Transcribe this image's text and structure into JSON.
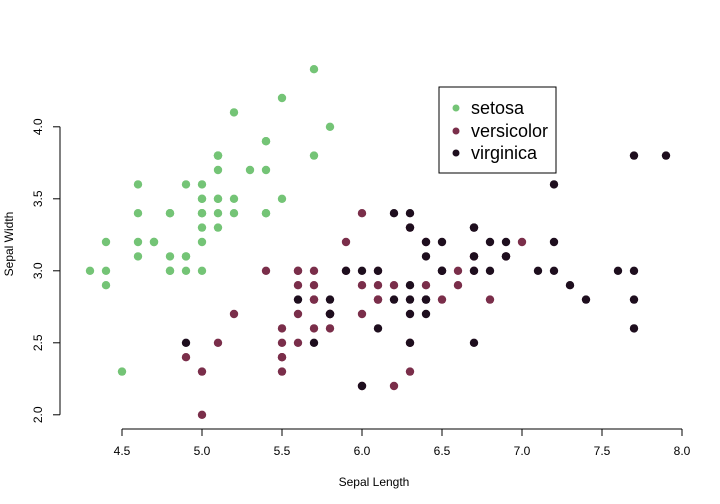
{
  "chart_data": {
    "type": "scatter",
    "title": "",
    "xlabel": "Sepal Length",
    "ylabel": "Sepal Width",
    "xlim": [
      4.2,
      8.0
    ],
    "ylim": [
      1.95,
      4.45
    ],
    "xticks": [
      "4.5",
      "5.0",
      "5.5",
      "6.0",
      "6.5",
      "7.0",
      "7.5",
      "8.0"
    ],
    "yticks": [
      "2.0",
      "2.5",
      "3.0",
      "3.5",
      "4.0"
    ],
    "legend_position": "top-right",
    "grid": false,
    "series": [
      {
        "name": "setosa",
        "color": "#74c476",
        "points": [
          [
            5.1,
            3.5
          ],
          [
            4.9,
            3.0
          ],
          [
            4.7,
            3.2
          ],
          [
            4.6,
            3.1
          ],
          [
            5.0,
            3.6
          ],
          [
            5.4,
            3.9
          ],
          [
            4.6,
            3.4
          ],
          [
            5.0,
            3.4
          ],
          [
            4.4,
            2.9
          ],
          [
            4.9,
            3.1
          ],
          [
            5.4,
            3.7
          ],
          [
            4.8,
            3.4
          ],
          [
            4.8,
            3.0
          ],
          [
            4.3,
            3.0
          ],
          [
            5.8,
            4.0
          ],
          [
            5.7,
            4.4
          ],
          [
            5.4,
            3.9
          ],
          [
            5.1,
            3.5
          ],
          [
            5.7,
            3.8
          ],
          [
            5.1,
            3.8
          ],
          [
            5.4,
            3.4
          ],
          [
            5.1,
            3.7
          ],
          [
            4.6,
            3.6
          ],
          [
            5.1,
            3.3
          ],
          [
            4.8,
            3.4
          ],
          [
            5.0,
            3.0
          ],
          [
            5.0,
            3.4
          ],
          [
            5.2,
            3.5
          ],
          [
            5.2,
            3.4
          ],
          [
            4.7,
            3.2
          ],
          [
            4.8,
            3.1
          ],
          [
            5.4,
            3.4
          ],
          [
            5.2,
            4.1
          ],
          [
            5.5,
            4.2
          ],
          [
            4.9,
            3.1
          ],
          [
            5.0,
            3.2
          ],
          [
            5.5,
            3.5
          ],
          [
            4.9,
            3.6
          ],
          [
            4.4,
            3.0
          ],
          [
            5.1,
            3.4
          ],
          [
            5.0,
            3.5
          ],
          [
            4.5,
            2.3
          ],
          [
            4.4,
            3.2
          ],
          [
            5.0,
            3.5
          ],
          [
            5.1,
            3.8
          ],
          [
            4.8,
            3.0
          ],
          [
            5.1,
            3.8
          ],
          [
            4.6,
            3.2
          ],
          [
            5.3,
            3.7
          ],
          [
            5.0,
            3.3
          ]
        ]
      },
      {
        "name": "versicolor",
        "color": "#7a2e4a",
        "points": [
          [
            7.0,
            3.2
          ],
          [
            6.4,
            3.2
          ],
          [
            6.9,
            3.1
          ],
          [
            5.5,
            2.3
          ],
          [
            6.5,
            2.8
          ],
          [
            5.7,
            2.8
          ],
          [
            6.3,
            3.3
          ],
          [
            4.9,
            2.4
          ],
          [
            6.6,
            2.9
          ],
          [
            5.2,
            2.7
          ],
          [
            5.0,
            2.0
          ],
          [
            5.9,
            3.0
          ],
          [
            6.0,
            2.2
          ],
          [
            6.1,
            2.9
          ],
          [
            5.6,
            2.9
          ],
          [
            6.7,
            3.1
          ],
          [
            5.6,
            3.0
          ],
          [
            5.8,
            2.7
          ],
          [
            6.2,
            2.2
          ],
          [
            5.6,
            2.5
          ],
          [
            5.9,
            3.2
          ],
          [
            6.1,
            2.8
          ],
          [
            6.3,
            2.5
          ],
          [
            6.1,
            2.8
          ],
          [
            6.4,
            2.9
          ],
          [
            6.6,
            3.0
          ],
          [
            6.8,
            2.8
          ],
          [
            6.7,
            3.0
          ],
          [
            6.0,
            2.9
          ],
          [
            5.7,
            2.6
          ],
          [
            5.5,
            2.4
          ],
          [
            5.5,
            2.4
          ],
          [
            5.8,
            2.7
          ],
          [
            6.0,
            2.7
          ],
          [
            5.4,
            3.0
          ],
          [
            6.0,
            3.4
          ],
          [
            6.7,
            3.1
          ],
          [
            6.3,
            2.3
          ],
          [
            5.6,
            3.0
          ],
          [
            5.5,
            2.5
          ],
          [
            5.5,
            2.6
          ],
          [
            6.1,
            3.0
          ],
          [
            5.8,
            2.6
          ],
          [
            5.0,
            2.3
          ],
          [
            5.6,
            2.7
          ],
          [
            5.7,
            3.0
          ],
          [
            5.7,
            2.9
          ],
          [
            6.2,
            2.9
          ],
          [
            5.1,
            2.5
          ],
          [
            5.7,
            2.8
          ]
        ]
      },
      {
        "name": "virginica",
        "color": "#1e0e1e",
        "points": [
          [
            6.3,
            3.3
          ],
          [
            5.8,
            2.7
          ],
          [
            7.1,
            3.0
          ],
          [
            6.3,
            2.9
          ],
          [
            6.5,
            3.0
          ],
          [
            7.6,
            3.0
          ],
          [
            4.9,
            2.5
          ],
          [
            7.3,
            2.9
          ],
          [
            6.7,
            2.5
          ],
          [
            7.2,
            3.6
          ],
          [
            6.5,
            3.2
          ],
          [
            6.4,
            2.7
          ],
          [
            6.8,
            3.0
          ],
          [
            5.7,
            2.5
          ],
          [
            5.8,
            2.8
          ],
          [
            6.4,
            3.2
          ],
          [
            6.5,
            3.0
          ],
          [
            7.7,
            3.8
          ],
          [
            7.7,
            2.6
          ],
          [
            6.0,
            2.2
          ],
          [
            6.9,
            3.2
          ],
          [
            5.6,
            2.8
          ],
          [
            7.7,
            2.8
          ],
          [
            6.3,
            2.7
          ],
          [
            6.7,
            3.3
          ],
          [
            7.2,
            3.2
          ],
          [
            6.2,
            2.8
          ],
          [
            6.1,
            3.0
          ],
          [
            6.4,
            2.8
          ],
          [
            7.2,
            3.0
          ],
          [
            7.4,
            2.8
          ],
          [
            7.9,
            3.8
          ],
          [
            6.4,
            2.8
          ],
          [
            6.3,
            2.8
          ],
          [
            6.1,
            2.6
          ],
          [
            7.7,
            3.0
          ],
          [
            6.3,
            3.4
          ],
          [
            6.4,
            3.1
          ],
          [
            6.0,
            3.0
          ],
          [
            6.9,
            3.1
          ],
          [
            6.7,
            3.1
          ],
          [
            6.9,
            3.1
          ],
          [
            5.8,
            2.7
          ],
          [
            6.8,
            3.2
          ],
          [
            6.7,
            3.3
          ],
          [
            6.7,
            3.0
          ],
          [
            6.3,
            2.5
          ],
          [
            6.5,
            3.0
          ],
          [
            6.2,
            3.4
          ],
          [
            5.9,
            3.0
          ]
        ]
      }
    ]
  }
}
